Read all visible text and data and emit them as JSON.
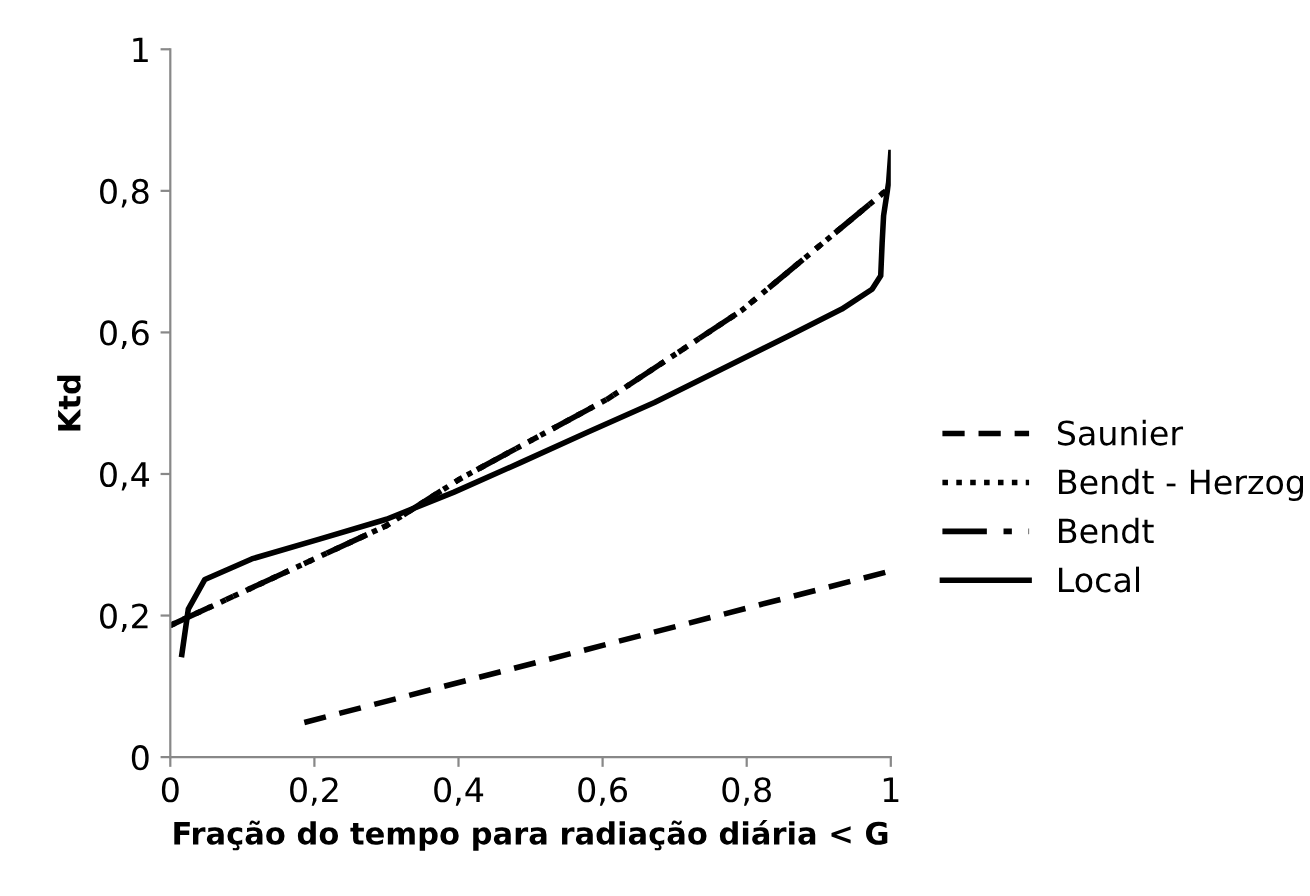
{
  "chart_data": {
    "type": "line",
    "xlabel": "Fração do tempo para radiação diária < G",
    "ylabel": "Ktd",
    "xlim": [
      0,
      1
    ],
    "ylim": [
      0,
      1
    ],
    "xticks": [
      0,
      {
        "value": 0.2,
        "label": "0,2"
      },
      {
        "value": 0.4,
        "label": "0,4"
      },
      {
        "value": 0.6,
        "label": "0,6"
      },
      {
        "value": 0.8,
        "label": "0,8"
      },
      1
    ],
    "yticks": [
      0,
      {
        "value": 0.2,
        "label": "0,2"
      },
      {
        "value": 0.4,
        "label": "0,4"
      },
      {
        "value": 0.6,
        "label": "0,6"
      },
      {
        "value": 0.8,
        "label": "0,8"
      },
      1
    ],
    "grid": false,
    "legend": "right",
    "marker": "none",
    "series": [
      {
        "name": "Saunier",
        "color": "#000000",
        "line_style": "dashed",
        "x": [
          0.186,
          1
        ],
        "values": [
          0.049,
          0.263
        ]
      },
      {
        "name": "Bendt - Herzog",
        "color": "#000000",
        "line_style": "dotted",
        "x": [
          0,
          0.3,
          0.402,
          0.607,
          0.793,
          0.993
        ],
        "values": [
          0.186,
          0.327,
          0.393,
          0.506,
          0.631,
          0.8
        ]
      },
      {
        "name": "Bendt",
        "color": "#000000",
        "line_style": "dashdot",
        "x": [
          0,
          0.3,
          0.402,
          0.607,
          0.793,
          0.993
        ],
        "values": [
          0.186,
          0.327,
          0.393,
          0.506,
          0.631,
          0.8
        ]
      },
      {
        "name": "Local",
        "color": "#000000",
        "line_style": "solid",
        "x": [
          0.016,
          0.025,
          0.048,
          0.113,
          0.207,
          0.3,
          0.393,
          0.486,
          0.579,
          0.672,
          0.765,
          0.858,
          0.932,
          0.974,
          0.986,
          0.988,
          0.99,
          0.997,
          1
        ],
        "values": [
          0.145,
          0.209,
          0.251,
          0.28,
          0.308,
          0.336,
          0.374,
          0.416,
          0.459,
          0.501,
          0.548,
          0.595,
          0.633,
          0.661,
          0.68,
          0.727,
          0.765,
          0.812,
          0.854
        ]
      }
    ]
  }
}
